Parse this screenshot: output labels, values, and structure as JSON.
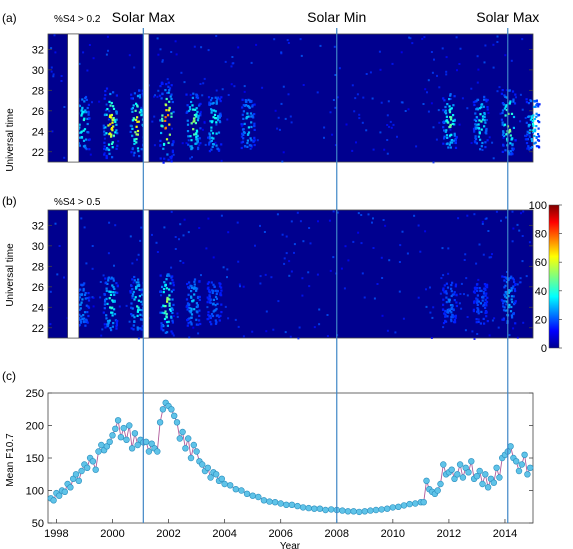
{
  "chart_data": [
    {
      "panel": "(a)",
      "type": "heatmap",
      "annotation": "%S4 > 0.2",
      "ylabel": "Universal time",
      "yticks": [
        "22",
        "24",
        "26",
        "28",
        "30",
        "32"
      ],
      "ylim": [
        21,
        33.5
      ],
      "xlim": [
        1997.7,
        2015.0
      ],
      "colormap": "jet",
      "clim": [
        0,
        100
      ],
      "data_gaps": [
        [
          1998.4,
          1998.8
        ],
        [
          2001.1,
          2001.3
        ]
      ],
      "activity_seasons": [
        {
          "x": 1998.9,
          "center_ut": 24.8,
          "intensity": 0.3
        },
        {
          "x": 1999.9,
          "center_ut": 24.8,
          "intensity": 0.55
        },
        {
          "x": 2000.85,
          "center_ut": 24.8,
          "intensity": 0.5
        },
        {
          "x": 2001.9,
          "center_ut": 25.0,
          "intensity": 0.7
        },
        {
          "x": 2002.85,
          "center_ut": 24.8,
          "intensity": 0.4
        },
        {
          "x": 2003.6,
          "center_ut": 24.8,
          "intensity": 0.3
        },
        {
          "x": 2004.8,
          "center_ut": 24.8,
          "intensity": 0.22
        },
        {
          "x": 2012.0,
          "center_ut": 25.0,
          "intensity": 0.35
        },
        {
          "x": 2013.1,
          "center_ut": 25.0,
          "intensity": 0.3
        },
        {
          "x": 2014.1,
          "center_ut": 25.0,
          "intensity": 0.45
        },
        {
          "x": 2014.95,
          "center_ut": 24.8,
          "intensity": 0.25
        }
      ]
    },
    {
      "panel": "(b)",
      "type": "heatmap",
      "annotation": "%S4 > 0.5",
      "ylabel": "Universal time",
      "yticks": [
        "22",
        "24",
        "26",
        "28",
        "30",
        "32"
      ],
      "ylim": [
        21,
        33.5
      ],
      "xlim": [
        1997.7,
        2015.0
      ],
      "colormap": "jet",
      "clim": [
        0,
        100
      ],
      "data_gaps": [
        [
          1998.4,
          1998.8
        ],
        [
          2001.1,
          2001.3
        ]
      ],
      "activity_seasons": [
        {
          "x": 1998.9,
          "center_ut": 24.3,
          "intensity": 0.15
        },
        {
          "x": 1999.9,
          "center_ut": 24.5,
          "intensity": 0.3
        },
        {
          "x": 2000.85,
          "center_ut": 24.5,
          "intensity": 0.28
        },
        {
          "x": 2001.9,
          "center_ut": 24.5,
          "intensity": 0.4
        },
        {
          "x": 2002.85,
          "center_ut": 24.5,
          "intensity": 0.2
        },
        {
          "x": 2003.6,
          "center_ut": 24.5,
          "intensity": 0.12
        },
        {
          "x": 2012.0,
          "center_ut": 24.5,
          "intensity": 0.12
        },
        {
          "x": 2013.1,
          "center_ut": 24.5,
          "intensity": 0.1
        },
        {
          "x": 2014.1,
          "center_ut": 24.8,
          "intensity": 0.2
        }
      ]
    },
    {
      "panel": "(c)",
      "type": "line",
      "xlabel": "Year",
      "ylabel": "Mean F10.7",
      "xticks": [
        "1998",
        "2000",
        "2002",
        "2004",
        "2006",
        "2008",
        "2010",
        "2012",
        "2014"
      ],
      "yticks": [
        "50",
        "100",
        "150",
        "200",
        "250"
      ],
      "xlim": [
        1997.7,
        2015.0
      ],
      "ylim": [
        50,
        250
      ],
      "series": [
        {
          "x": [
            1997.8,
            1997.9,
            1998.0,
            1998.1,
            1998.2,
            1998.3,
            1998.4,
            1998.5,
            1998.6,
            1998.7,
            1998.8,
            1998.9,
            1999.0,
            1999.1,
            1999.2,
            1999.3,
            1999.4,
            1999.5,
            1999.6,
            1999.7,
            1999.8,
            1999.9,
            2000.0,
            2000.1,
            2000.2,
            2000.3,
            2000.4,
            2000.5,
            2000.6,
            2000.7,
            2000.8,
            2000.9,
            2001.0,
            2001.1,
            2001.2,
            2001.3,
            2001.4,
            2001.5,
            2001.6,
            2001.7,
            2001.8,
            2001.9,
            2002.0,
            2002.1,
            2002.2,
            2002.3,
            2002.4,
            2002.5,
            2002.6,
            2002.7,
            2002.8,
            2002.9,
            2003.0,
            2003.1,
            2003.2,
            2003.3,
            2003.4,
            2003.5,
            2003.6,
            2003.7,
            2003.8,
            2003.9,
            2004.0,
            2004.2,
            2004.4,
            2004.6,
            2004.8,
            2005.0,
            2005.2,
            2005.4,
            2005.6,
            2005.8,
            2006.0,
            2006.2,
            2006.4,
            2006.6,
            2006.8,
            2007.0,
            2007.2,
            2007.4,
            2007.6,
            2007.8,
            2008.0,
            2008.2,
            2008.4,
            2008.6,
            2008.8,
            2009.0,
            2009.2,
            2009.4,
            2009.6,
            2009.8,
            2010.0,
            2010.2,
            2010.4,
            2010.6,
            2010.8,
            2011.0,
            2011.1,
            2011.2,
            2011.3,
            2011.4,
            2011.5,
            2011.6,
            2011.7,
            2011.8,
            2011.9,
            2012.0,
            2012.1,
            2012.2,
            2012.3,
            2012.4,
            2012.5,
            2012.6,
            2012.7,
            2012.8,
            2012.9,
            2013.0,
            2013.1,
            2013.2,
            2013.3,
            2013.4,
            2013.5,
            2013.6,
            2013.7,
            2013.8,
            2013.9,
            2014.0,
            2014.1,
            2014.2,
            2014.3,
            2014.4,
            2014.5,
            2014.6,
            2014.7,
            2014.8,
            2014.9
          ],
          "y": [
            88,
            85,
            96,
            92,
            100,
            98,
            110,
            105,
            118,
            125,
            115,
            130,
            140,
            135,
            150,
            145,
            132,
            160,
            170,
            162,
            168,
            175,
            185,
            195,
            208,
            182,
            196,
            178,
            200,
            165,
            188,
            170,
            178,
            174,
            175,
            160,
            172,
            165,
            160,
            205,
            225,
            235,
            230,
            225,
            215,
            205,
            180,
            190,
            165,
            180,
            150,
            170,
            160,
            145,
            140,
            130,
            135,
            120,
            128,
            125,
            115,
            118,
            110,
            108,
            102,
            100,
            95,
            92,
            90,
            85,
            83,
            82,
            80,
            78,
            78,
            76,
            74,
            73,
            72,
            72,
            70,
            71,
            70,
            69,
            68,
            68,
            67,
            68,
            69,
            70,
            71,
            72,
            74,
            75,
            77,
            79,
            80,
            82,
            82,
            115,
            102,
            98,
            95,
            100,
            110,
            140,
            125,
            128,
            132,
            118,
            125,
            140,
            120,
            135,
            128,
            145,
            118,
            122,
            130,
            110,
            125,
            105,
            118,
            112,
            135,
            120,
            150,
            155,
            160,
            168,
            150,
            145,
            130,
            140,
            155,
            125,
            135
          ]
        }
      ]
    },
    {
      "type": "colorbar",
      "ticks": [
        "0",
        "20",
        "40",
        "60",
        "80",
        "100"
      ],
      "range": [
        0,
        100
      ],
      "colormap": "jet"
    }
  ],
  "annotations": {
    "solar_labels": [
      {
        "text": "Solar Max",
        "x": 2001.1
      },
      {
        "text": "Solar Min",
        "x": 2008.0
      },
      {
        "text": "Solar Max",
        "x": 2014.1
      }
    ],
    "vertical_lines": [
      2001.1,
      2008.0,
      2014.1
    ]
  }
}
